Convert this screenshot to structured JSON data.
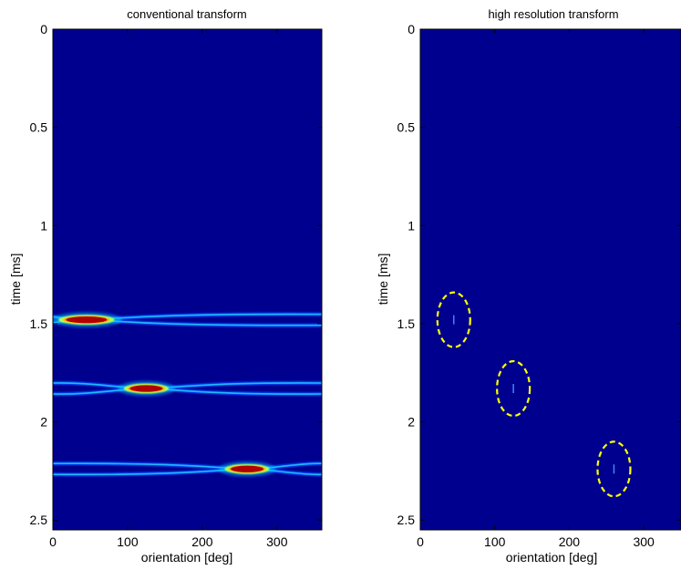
{
  "chart_data": [
    {
      "type": "heatmap",
      "title": "conventional transform",
      "xlabel": "orientation [deg]",
      "ylabel": "time [ms]",
      "xlim": [
        0,
        360
      ],
      "ylim": [
        2.55,
        0
      ],
      "xticks": [
        "0",
        "100",
        "200",
        "300"
      ],
      "yticks": [
        "0",
        "0.5",
        "1",
        "1.5",
        "2",
        "2.5"
      ],
      "colormap": "jet",
      "background": "#00008f",
      "bands": [
        {
          "time": 1.48,
          "peak_orientation": 45,
          "peak_width": 50
        },
        {
          "time": 1.83,
          "peak_orientation": 125,
          "peak_width": 40
        },
        {
          "time": 2.24,
          "peak_orientation": 260,
          "peak_width": 40
        }
      ]
    },
    {
      "type": "heatmap",
      "title": "high resolution transform",
      "xlabel": "orientation [deg]",
      "ylabel": "time [ms]",
      "xlim": [
        0,
        350
      ],
      "ylim": [
        2.55,
        0
      ],
      "xticks": [
        "0",
        "100",
        "200",
        "300"
      ],
      "yticks": [
        "0",
        "0.5",
        "1",
        "1.5",
        "2",
        "2.5"
      ],
      "colormap": "jet",
      "background": "#00008f",
      "ellipse_color": "#ffff00",
      "points": [
        {
          "orientation": 45,
          "time": 1.48
        },
        {
          "orientation": 125,
          "time": 1.83
        },
        {
          "orientation": 260,
          "time": 2.24
        }
      ]
    }
  ]
}
